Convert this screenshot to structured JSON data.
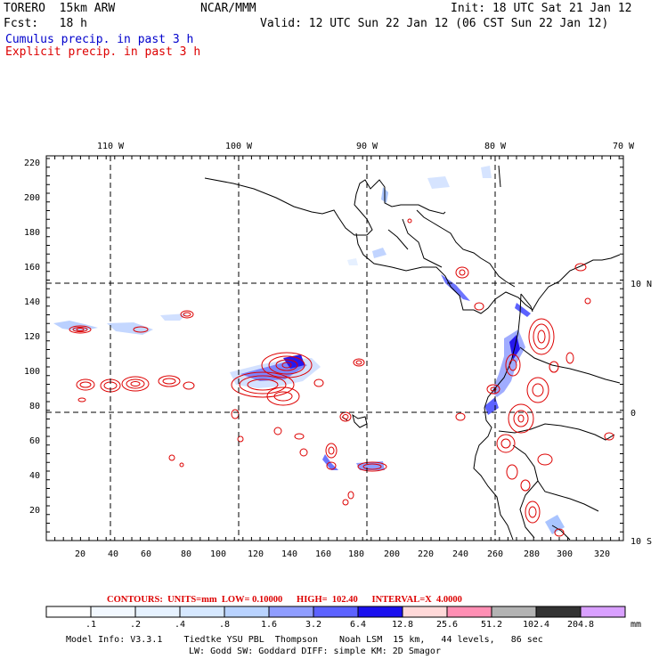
{
  "header": {
    "model": "TORERO  15km ARW",
    "org": "NCAR/MMM",
    "init": "Init: 18 UTC Sat 21 Jan 12",
    "fcst_label": "Fcst:   18 h",
    "valid": "Valid: 12 UTC Sun 22 Jan 12 (06 CST Sun 22 Jan 12)",
    "cumulus": "Cumulus precip. in past 3 h",
    "explicit": "Explicit precip. in past 3 h"
  },
  "colors": {
    "cumulus_text": "#0000cc",
    "explicit_text": "#dd0000",
    "contour": "#dd0000"
  },
  "map": {
    "lon_labels": [
      "110 W",
      "100 W",
      "90 W",
      "80 W",
      "70 W"
    ],
    "lat_labels": [
      "10 N",
      "0",
      "10 S"
    ],
    "x_ticks": [
      "20",
      "40",
      "60",
      "80",
      "100",
      "120",
      "140",
      "160",
      "180",
      "200",
      "220",
      "240",
      "260",
      "280",
      "300",
      "320"
    ],
    "y_ticks": [
      "20",
      "40",
      "60",
      "80",
      "100",
      "120",
      "140",
      "160",
      "180",
      "200",
      "220"
    ]
  },
  "contour_info": "CONTOURS:  UNITS=mm  LOW= 0.10000      HIGH=  102.40      INTERVAL=X  4.0000",
  "colorbar": {
    "labels": [
      ".1",
      ".2",
      ".4",
      ".8",
      "1.6",
      "3.2",
      "6.4",
      "12.8",
      "25.6",
      "51.2",
      "102.4",
      "204.8"
    ],
    "unit": "mm",
    "colors": [
      "#ffffff",
      "#f2f8ff",
      "#e6f2ff",
      "#d6e8ff",
      "#b9d3ff",
      "#8f9dff",
      "#5c62ff",
      "#1a10ee",
      "#ffd9d9",
      "#ff8fb4",
      "#b3b3b3",
      "#333333",
      "#d9a0ff"
    ]
  },
  "footer": {
    "line1": "Model Info: V3.3.1    Tiedtke YSU PBL  Thompson    Noah LSM  15 km,   44 levels,   86 sec",
    "line2": "LW: Godd SW: Goddard DIFF: simple KM: 2D Smagor"
  }
}
